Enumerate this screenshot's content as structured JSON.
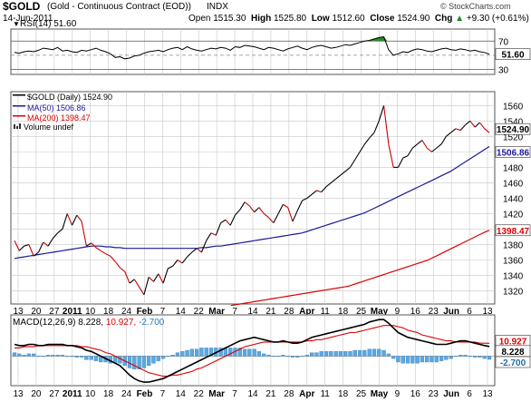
{
  "header": {
    "symbol": "$GOLD",
    "name": "(Gold - Continuous Contract (EOD))",
    "exchange": "INDX",
    "watermark": "© StockCharts.com",
    "date": "14-Jun-2011",
    "ohlc": [
      {
        "label": "Open",
        "value": "1515.30"
      },
      {
        "label": "High",
        "value": "1525.80"
      },
      {
        "label": "Low",
        "value": "1512.60"
      },
      {
        "label": "Close",
        "value": "1524.90"
      },
      {
        "label": "Chg",
        "value": "+9.30 (+0.61%)",
        "arrow": "▲"
      }
    ]
  },
  "colors": {
    "price": "#000000",
    "price_down": "#cc0000",
    "ma50": "#1a1a9a",
    "ma200": "#dd0000",
    "rsi_fill": "#2a8a2a",
    "macd": "#000000",
    "signal": "#dd0000",
    "histogram": "#5aa8e0",
    "grid": "#c8c8c8"
  },
  "chart_data": [
    {
      "type": "line",
      "title": "RSI(14) 51.60",
      "indicator": "RSI(14)",
      "last_value": 51.6,
      "last_value_label": "51.60",
      "ylim": [
        23,
        87
      ],
      "y_ticks": [
        30,
        50,
        70
      ],
      "overbought": 70,
      "oversold": 30,
      "values": [
        54,
        53,
        55,
        56,
        55,
        57,
        60,
        59,
        58,
        61,
        56,
        57,
        55,
        54,
        57,
        56,
        58,
        60,
        57,
        55,
        52,
        47,
        48,
        45,
        46,
        49,
        50,
        53,
        55,
        56,
        57,
        55,
        58,
        60,
        61,
        58,
        62,
        59,
        57,
        56,
        58,
        60,
        59,
        61,
        60,
        57,
        62,
        61,
        64,
        63,
        62,
        60,
        58,
        61,
        60,
        58,
        56,
        59,
        61,
        63,
        60,
        58,
        61,
        63,
        64,
        62,
        60,
        61,
        63,
        65,
        64,
        66,
        68,
        70,
        71,
        73,
        75,
        76,
        58,
        50,
        52,
        55,
        54,
        57,
        59,
        58,
        56,
        55,
        57,
        59,
        60,
        58,
        57,
        59,
        58,
        56,
        57,
        55,
        54,
        51.6
      ]
    },
    {
      "type": "line",
      "title": "$GOLD (Daily) 1524.90",
      "legend": [
        "$GOLD (Daily) 1524.90",
        "MA(50) 1506.86",
        "MA(200) 1398.47",
        "Volume undef"
      ],
      "ylim": [
        1303,
        1578
      ],
      "y_ticks": [
        1320,
        1340,
        1360,
        1380,
        1400,
        1420,
        1440,
        1460,
        1480,
        1500,
        1520,
        1540,
        1560
      ],
      "last_value_labels": [
        "1524.90",
        "1506.86",
        "1398.47"
      ],
      "x_labels": [
        "13",
        "20",
        "27",
        "2011",
        "10",
        "18",
        "24",
        "Feb",
        "7",
        "14",
        "22",
        "Mar",
        "7",
        "14",
        "21",
        "28",
        "Apr",
        "11",
        "18",
        "25",
        "May",
        "9",
        "16",
        "23",
        "Jun",
        "6",
        "13"
      ],
      "series": [
        {
          "name": "$GOLD (Daily)",
          "values": [
            1385,
            1372,
            1378,
            1380,
            1365,
            1370,
            1383,
            1378,
            1388,
            1395,
            1400,
            1420,
            1405,
            1418,
            1410,
            1378,
            1382,
            1376,
            1372,
            1368,
            1365,
            1358,
            1350,
            1345,
            1330,
            1335,
            1325,
            1315,
            1338,
            1332,
            1342,
            1330,
            1349,
            1352,
            1360,
            1356,
            1364,
            1370,
            1375,
            1370,
            1385,
            1395,
            1392,
            1408,
            1412,
            1405,
            1418,
            1425,
            1435,
            1430,
            1422,
            1428,
            1420,
            1415,
            1408,
            1420,
            1432,
            1428,
            1410,
            1424,
            1437,
            1440,
            1445,
            1450,
            1448,
            1455,
            1460,
            1465,
            1470,
            1475,
            1480,
            1490,
            1500,
            1510,
            1518,
            1525,
            1540,
            1560,
            1510,
            1480,
            1480,
            1492,
            1495,
            1505,
            1510,
            1515,
            1505,
            1500,
            1505,
            1510,
            1520,
            1525,
            1530,
            1528,
            1535,
            1540,
            1532,
            1538,
            1530,
            1524.9
          ]
        },
        {
          "name": "MA(50)",
          "values": [
            1362,
            1363,
            1364,
            1365,
            1366,
            1367,
            1368,
            1369,
            1370,
            1371,
            1372,
            1373,
            1374,
            1375,
            1376,
            1377,
            1378,
            1378,
            1378,
            1377,
            1377,
            1376,
            1376,
            1375,
            1375,
            1375,
            1375,
            1375,
            1375,
            1375,
            1375,
            1375,
            1375,
            1375,
            1375,
            1375,
            1375,
            1375,
            1375,
            1376,
            1376,
            1377,
            1378,
            1378,
            1379,
            1380,
            1381,
            1382,
            1383,
            1384,
            1385,
            1386,
            1387,
            1388,
            1389,
            1390,
            1391,
            1392,
            1393,
            1394,
            1395,
            1397,
            1399,
            1401,
            1403,
            1405,
            1407,
            1409,
            1411,
            1413,
            1415,
            1417,
            1419,
            1421,
            1424,
            1427,
            1430,
            1433,
            1436,
            1439,
            1442,
            1445,
            1448,
            1451,
            1454,
            1457,
            1460,
            1463,
            1466,
            1469,
            1472,
            1475,
            1479,
            1483,
            1487,
            1491,
            1495,
            1499,
            1503,
            1506.86
          ]
        },
        {
          "name": "MA(200)",
          "values": [
            null,
            null,
            null,
            null,
            null,
            null,
            null,
            null,
            null,
            null,
            null,
            null,
            null,
            null,
            null,
            null,
            null,
            null,
            null,
            null,
            null,
            null,
            null,
            null,
            null,
            null,
            null,
            null,
            null,
            null,
            null,
            null,
            null,
            null,
            null,
            null,
            null,
            null,
            null,
            null,
            null,
            null,
            null,
            null,
            null,
            null,
            1301,
            1302,
            1303,
            1304,
            1305,
            1306,
            1307,
            1308,
            1309,
            1310,
            1311,
            1312,
            1313,
            1314,
            1315,
            1316,
            1317,
            1318,
            1319,
            1320,
            1321,
            1322,
            1323,
            1324,
            1325,
            1326,
            1328,
            1330,
            1332,
            1334,
            1336,
            1338,
            1340,
            1342,
            1344,
            1346,
            1348,
            1350,
            1352,
            1354,
            1356,
            1358,
            1360,
            1363,
            1366,
            1369,
            1372,
            1375,
            1378,
            1381,
            1384,
            1387,
            1390,
            1393,
            1396,
            1398.47
          ]
        }
      ]
    },
    {
      "type": "line",
      "title": "MACD(12,26,9) 8.228, 10.927, -2.700",
      "indicator": "MACD(12,26,9)",
      "ylim": [
        -25,
        35
      ],
      "last_value_labels": [
        "10.927",
        "8.228",
        "-2.700"
      ],
      "series": [
        {
          "name": "MACD",
          "values": [
            10,
            9,
            9,
            10,
            10,
            9,
            9,
            10,
            10,
            10,
            10,
            9,
            9,
            8,
            7,
            5,
            4,
            2,
            0,
            -2,
            -4,
            -6,
            -8,
            -12,
            -16,
            -19,
            -21,
            -22,
            -22,
            -21,
            -20,
            -19,
            -17,
            -15,
            -13,
            -11,
            -9,
            -7,
            -5,
            -3,
            -1,
            1,
            3,
            5,
            7,
            9,
            11,
            13,
            14,
            15,
            16,
            15,
            14,
            13,
            12,
            12,
            13,
            12,
            11,
            11,
            12,
            14,
            16,
            17,
            18,
            19,
            20,
            21,
            22,
            23,
            24,
            25,
            26,
            27,
            29,
            30,
            31,
            31,
            28,
            24,
            20,
            18,
            16,
            15,
            14,
            13,
            12,
            11,
            10,
            10,
            10,
            11,
            12,
            13,
            13,
            12,
            11,
            10,
            9,
            8.228
          ]
        },
        {
          "name": "Signal",
          "values": [
            7,
            7,
            8,
            8,
            8,
            9,
            9,
            9,
            9,
            9,
            9,
            9,
            9,
            9,
            8,
            8,
            7,
            6,
            5,
            3,
            2,
            0,
            -2,
            -4,
            -6,
            -8,
            -10,
            -12,
            -14,
            -15,
            -16,
            -17,
            -17,
            -16,
            -16,
            -15,
            -14,
            -13,
            -11,
            -10,
            -8,
            -6,
            -4,
            -2,
            0,
            2,
            4,
            6,
            8,
            9,
            10,
            11,
            12,
            12,
            12,
            12,
            12,
            12,
            12,
            12,
            12,
            13,
            13,
            14,
            14,
            15,
            16,
            17,
            18,
            19,
            20,
            20,
            21,
            22,
            23,
            24,
            25,
            26,
            26,
            26,
            25,
            24,
            22,
            21,
            20,
            18,
            17,
            16,
            15,
            14,
            13,
            13,
            12,
            12,
            12,
            12,
            12,
            11,
            11,
            10.927
          ]
        },
        {
          "name": "Histogram",
          "values": [
            3,
            2,
            1,
            2,
            2,
            0,
            0,
            1,
            1,
            1,
            1,
            0,
            0,
            -1,
            -1,
            -3,
            -3,
            -4,
            -5,
            -5,
            -6,
            -6,
            -6,
            -8,
            -10,
            -11,
            -11,
            -10,
            -8,
            -6,
            -4,
            -2,
            0,
            1,
            3,
            4,
            5,
            6,
            6,
            7,
            7,
            7,
            7,
            7,
            7,
            7,
            7,
            7,
            6,
            6,
            6,
            4,
            2,
            1,
            0,
            0,
            1,
            0,
            -1,
            -1,
            0,
            1,
            3,
            3,
            4,
            4,
            4,
            4,
            4,
            4,
            4,
            5,
            5,
            5,
            6,
            6,
            6,
            5,
            2,
            -2,
            -5,
            -6,
            -6,
            -6,
            -6,
            -5,
            -5,
            -5,
            -5,
            -4,
            -3,
            -2,
            0,
            1,
            1,
            0,
            -1,
            -1,
            -2,
            -2.7
          ]
        }
      ],
      "x_labels": [
        "13",
        "20",
        "27",
        "2011",
        "10",
        "18",
        "24",
        "Feb",
        "7",
        "14",
        "22",
        "Mar",
        "7",
        "14",
        "21",
        "28",
        "Apr",
        "11",
        "18",
        "25",
        "May",
        "9",
        "16",
        "23",
        "Jun",
        "6",
        "13"
      ]
    }
  ]
}
